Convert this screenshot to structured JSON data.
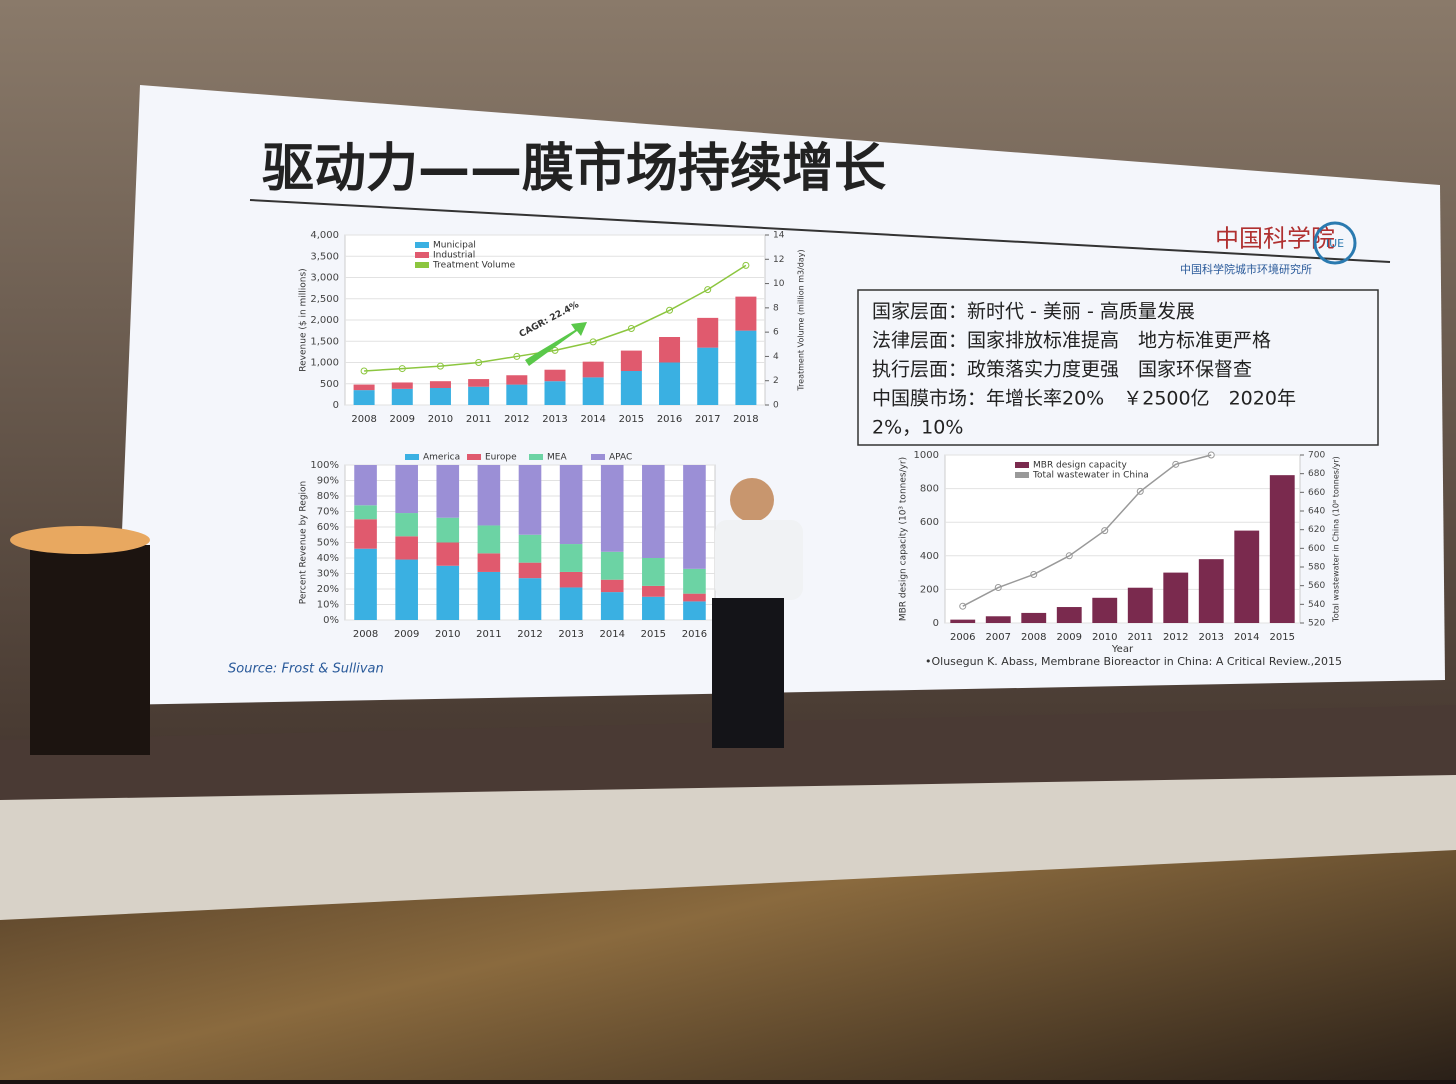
{
  "slide": {
    "title": "驱动力——膜市场持续增长",
    "logo": {
      "name": "中国科学院",
      "institute": "中国科学院城市环境研究所",
      "badge": "IUE"
    },
    "bullets": [
      "国家层面：新时代 - 美丽 - 高质量发展",
      "法律层面：国家排放标准提高　地方标准更严格",
      "执行层面：政策落实力度更强　国家环保督查",
      "中国膜市场：年增长率20%　￥2500亿　2020年",
      "2%，10%"
    ],
    "source": "Source: Frost & Sullivan",
    "citation": "•Olusegun K. Abass, Membrane Bioreactor in China: A Critical Review.,2015"
  },
  "chart_data": [
    {
      "type": "bar",
      "stacked": true,
      "categories": [
        "2008",
        "2009",
        "2010",
        "2011",
        "2012",
        "2013",
        "2014",
        "2015",
        "2016",
        "2017",
        "2018"
      ],
      "ylabel": "Revenue ($ in millions)",
      "y2label": "Treatment Volume (million m3/day)",
      "annotation": "CAGR: 22.4%",
      "legend": "upper left",
      "ylim": [
        0,
        4000
      ],
      "yticks": [
        0,
        500,
        {
          "value": 1000,
          "label": "1,000"
        },
        {
          "value": 1500,
          "label": "1,500"
        },
        {
          "value": 2000,
          "label": "2,000"
        },
        {
          "value": 2500,
          "label": "2,500"
        },
        {
          "value": 3000,
          "label": "3,000"
        },
        {
          "value": 3500,
          "label": "3,500"
        },
        {
          "value": 4000,
          "label": "4,000"
        }
      ],
      "y2lim": [
        0,
        14
      ],
      "y2ticks": [
        0,
        2,
        4,
        6,
        8,
        10,
        12,
        14
      ],
      "series": [
        {
          "name": "Municipal",
          "color": "#3ab0e2",
          "values": [
            350,
            380,
            400,
            430,
            480,
            560,
            650,
            800,
            1000,
            1350,
            1750
          ]
        },
        {
          "name": "Industrial",
          "color": "#e05a6e",
          "values": [
            130,
            150,
            160,
            180,
            220,
            270,
            370,
            480,
            600,
            700,
            800
          ]
        },
        {
          "name": "Treatment Volume",
          "color": "#8cc63f",
          "type": "line",
          "axis": "y2",
          "values": [
            2.8,
            3.0,
            3.2,
            3.5,
            4.0,
            4.5,
            5.2,
            6.3,
            7.8,
            9.5,
            11.5
          ]
        }
      ]
    },
    {
      "type": "bar",
      "stacked": true,
      "categories": [
        "2008",
        "2009",
        "2010",
        "2011",
        "2012",
        "2013",
        "2014",
        "2015",
        "2016"
      ],
      "ylabel": "Percent Revenue by Region",
      "legend": "top",
      "ylim": [
        0,
        100
      ],
      "yticks": [
        {
          "value": 0,
          "label": "0%"
        },
        {
          "value": 10,
          "label": "10%"
        },
        {
          "value": 20,
          "label": "20%"
        },
        {
          "value": 30,
          "label": "30%"
        },
        {
          "value": 40,
          "label": "40%"
        },
        {
          "value": 50,
          "label": "50%"
        },
        {
          "value": 60,
          "label": "60%"
        },
        {
          "value": 70,
          "label": "70%"
        },
        {
          "value": 80,
          "label": "80%"
        },
        {
          "value": 90,
          "label": "90%"
        },
        {
          "value": 100,
          "label": "100%"
        }
      ],
      "series": [
        {
          "name": "America",
          "color": "#3ab0e2",
          "values": [
            46,
            39,
            35,
            31,
            27,
            21,
            18,
            15,
            12
          ]
        },
        {
          "name": "Europe",
          "color": "#e05a6e",
          "values": [
            19,
            15,
            15,
            12,
            10,
            10,
            8,
            7,
            5
          ]
        },
        {
          "name": "MEA",
          "color": "#6cd3a4",
          "values": [
            9,
            15,
            16,
            18,
            18,
            18,
            18,
            18,
            16
          ]
        },
        {
          "name": "APAC",
          "color": "#9b8fd6",
          "values": [
            26,
            31,
            34,
            39,
            45,
            51,
            56,
            60,
            67
          ]
        }
      ]
    },
    {
      "type": "bar",
      "stacked": false,
      "categories": [
        "2006",
        "2007",
        "2008",
        "2009",
        "2010",
        "2011",
        "2012",
        "2013",
        "2014",
        "2015"
      ],
      "xlabel": "Year",
      "ylabel": "MBR design capacity (10³ tonnes/yr)",
      "y2label": "Total wastewater in China (10⁸ tonnes/yr)",
      "legend": "upper left",
      "ylim": [
        0,
        1000
      ],
      "yticks": [
        0,
        200,
        400,
        600,
        800,
        1000
      ],
      "y2lim": [
        520,
        700
      ],
      "y2ticks": [
        520,
        540,
        560,
        580,
        600,
        620,
        640,
        660,
        680,
        700
      ],
      "series": [
        {
          "name": "MBR design capacity",
          "color": "#7a2a4e",
          "values": [
            20,
            40,
            60,
            95,
            150,
            210,
            300,
            380,
            550,
            880
          ]
        },
        {
          "name": "Total wastewater in China",
          "color": "#999999",
          "type": "line",
          "axis": "y2",
          "values": [
            538,
            558,
            572,
            592,
            619,
            661,
            690,
            700,
            null,
            null
          ]
        }
      ]
    }
  ]
}
